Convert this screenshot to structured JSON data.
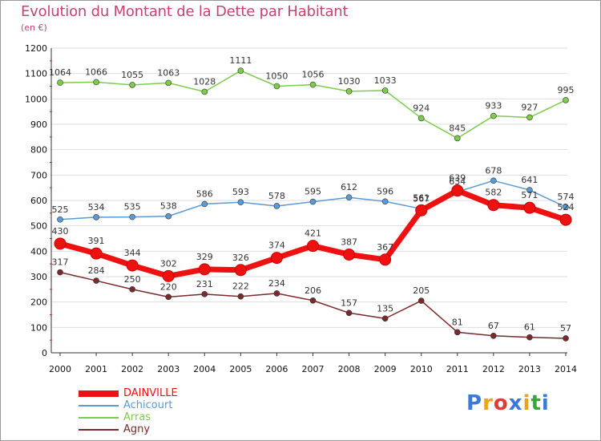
{
  "title": "Evolution du Montant de la Dette par Habitant",
  "subtitle": "(en €)",
  "logo": {
    "text": "Proxiti",
    "colors": [
      "#3a7bd5",
      "#f0a020",
      "#e23a3a",
      "#3a7bd5",
      "#f0a020",
      "#3aa63a",
      "#3a7bd5"
    ]
  },
  "chart_data": {
    "type": "line",
    "title": "Evolution du Montant de la Dette par Habitant",
    "subtitle": "(en €)",
    "x": [
      "2000",
      "2001",
      "2002",
      "2003",
      "2004",
      "2005",
      "2006",
      "2007",
      "2008",
      "2009",
      "2010",
      "2011",
      "2012",
      "2013",
      "2014"
    ],
    "ylim": [
      0,
      1200
    ],
    "yticks": [
      0,
      100,
      200,
      300,
      400,
      500,
      600,
      700,
      800,
      900,
      1000,
      1100,
      1200
    ],
    "grid": true,
    "legend_position": "bottom-left",
    "series": [
      {
        "name": "DAINVILLE",
        "color": "#ee1111",
        "values": [
          430,
          391,
          344,
          302,
          329,
          326,
          374,
          421,
          387,
          367,
          561,
          639,
          582,
          571,
          524
        ],
        "labels": [
          "430",
          "391",
          "344",
          "302",
          "329",
          "326",
          "374",
          "421",
          "387",
          "367",
          "561",
          "639",
          "582",
          "571",
          "524"
        ]
      },
      {
        "name": "Achicourt",
        "color": "#5b9bd5",
        "values": [
          525,
          534,
          535,
          538,
          586,
          593,
          578,
          595,
          612,
          596,
          567,
          634,
          678,
          641,
          574
        ],
        "labels": [
          "525",
          "534",
          "535",
          "538",
          "586",
          "593",
          "578",
          "595",
          "612",
          "596",
          "567",
          "634",
          "678",
          "641",
          "574"
        ]
      },
      {
        "name": "Arras",
        "color": "#7dcc4c",
        "values": [
          1064,
          1066,
          1055,
          1063,
          1028,
          1111,
          1050,
          1056,
          1030,
          1033,
          924,
          845,
          933,
          927,
          995
        ],
        "labels": [
          "1064",
          "1066",
          "1055",
          "1063",
          "1028",
          "1111",
          "1050",
          "1056",
          "1030",
          "1033",
          "924",
          "845",
          "933",
          "927",
          "995"
        ]
      },
      {
        "name": "Agny",
        "color": "#7a2a2a",
        "values": [
          317,
          284,
          250,
          220,
          231,
          222,
          234,
          206,
          157,
          135,
          205,
          81,
          67,
          61,
          57
        ],
        "labels": [
          "317",
          "284",
          "250",
          "220",
          "231",
          "222",
          "234",
          "206",
          "157",
          "135",
          "205",
          "81",
          "67",
          "61",
          "57"
        ]
      }
    ]
  }
}
